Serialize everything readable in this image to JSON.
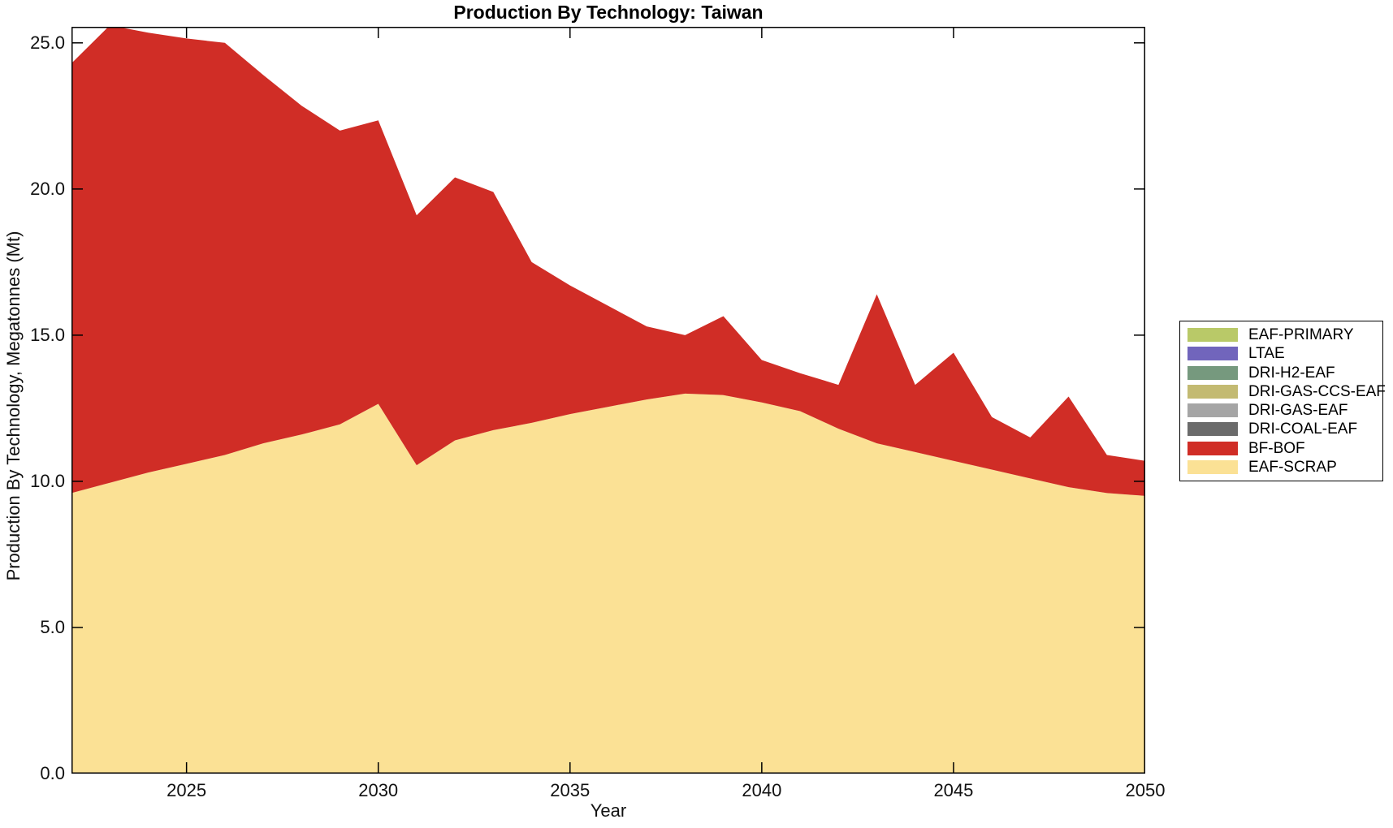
{
  "chart": {
    "title": "Production By Technology: Taiwan",
    "xlabel": "Year",
    "ylabel": "Production By Technology, Megatonnes (Mt)"
  },
  "colors": {
    "axis": "#000000",
    "tick_label": "#111111",
    "background": "#ffffff"
  },
  "chart_data": {
    "type": "area",
    "stacked": true,
    "title": "Production By Technology: Taiwan",
    "xlabel": "Year",
    "ylabel": "Production By Technology, Megatonnes (Mt)",
    "grid": false,
    "legend_position": "right-outside",
    "xlim": [
      2022,
      2050
    ],
    "ylim": [
      0,
      25.55
    ],
    "xticks": [
      2025,
      2030,
      2035,
      2040,
      2045,
      2050
    ],
    "xtick_labels": [
      "2025",
      "2030",
      "2035",
      "2040",
      "2045",
      "2050"
    ],
    "yticks": [
      0,
      5,
      10,
      15,
      20,
      25
    ],
    "ytick_labels": [
      "0.0",
      "5.0",
      "10.0",
      "15.0",
      "20.0",
      "25.0"
    ],
    "x": [
      2022,
      2023,
      2024,
      2025,
      2026,
      2027,
      2028,
      2029,
      2030,
      2031,
      2032,
      2033,
      2034,
      2035,
      2036,
      2037,
      2038,
      2039,
      2040,
      2041,
      2042,
      2043,
      2044,
      2045,
      2046,
      2047,
      2048,
      2049,
      2050
    ],
    "stack_order_bottom_to_top": [
      "EAF-SCRAP",
      "BF-BOF",
      "DRI-COAL-EAF",
      "DRI-GAS-EAF",
      "DRI-GAS-CCS-EAF",
      "DRI-H2-EAF",
      "LTAE",
      "EAF-PRIMARY"
    ],
    "series": [
      {
        "name": "EAF-SCRAP",
        "color": "#fbe195",
        "values": [
          9.6,
          9.95,
          10.3,
          10.6,
          10.9,
          11.3,
          11.6,
          11.95,
          12.65,
          10.55,
          11.4,
          11.75,
          12.0,
          12.3,
          12.55,
          12.8,
          13.0,
          12.95,
          12.7,
          12.4,
          11.8,
          11.3,
          11.0,
          10.7,
          10.4,
          10.1,
          9.8,
          9.6,
          9.5
        ]
      },
      {
        "name": "BF-BOF",
        "color": "#d02d26",
        "values": [
          14.7,
          15.65,
          15.05,
          14.55,
          14.1,
          12.6,
          11.25,
          10.05,
          9.7,
          8.55,
          9.0,
          8.15,
          5.5,
          4.4,
          3.45,
          2.5,
          2.0,
          2.7,
          1.45,
          1.3,
          1.5,
          5.1,
          2.3,
          3.7,
          1.8,
          1.4,
          3.1,
          1.3,
          1.2
        ]
      },
      {
        "name": "DRI-COAL-EAF",
        "color": "#6b6b6b",
        "values": [
          0,
          0,
          0,
          0,
          0,
          0,
          0,
          0,
          0,
          0,
          0,
          0,
          0,
          0,
          0,
          0,
          0,
          0,
          0,
          0,
          0,
          0,
          0,
          0,
          0,
          0,
          0,
          0,
          0
        ]
      },
      {
        "name": "DRI-GAS-EAF",
        "color": "#a5a5a5",
        "values": [
          0,
          0,
          0,
          0,
          0,
          0,
          0,
          0,
          0,
          0,
          0,
          0,
          0,
          0,
          0,
          0,
          0,
          0,
          0,
          0,
          0,
          0,
          0,
          0,
          0,
          0,
          0,
          0,
          0
        ]
      },
      {
        "name": "DRI-GAS-CCS-EAF",
        "color": "#c3ba72",
        "values": [
          0,
          0,
          0,
          0,
          0,
          0,
          0,
          0,
          0,
          0,
          0,
          0,
          0,
          0,
          0,
          0,
          0,
          0,
          0,
          0,
          0,
          0,
          0,
          0,
          0,
          0,
          0,
          0,
          0
        ]
      },
      {
        "name": "DRI-H2-EAF",
        "color": "#76997e",
        "values": [
          0,
          0,
          0,
          0,
          0,
          0,
          0,
          0,
          0,
          0,
          0,
          0,
          0,
          0,
          0,
          0,
          0,
          0,
          0,
          0,
          0,
          0,
          0,
          0,
          0,
          0,
          0,
          0,
          0
        ]
      },
      {
        "name": "LTAE",
        "color": "#7165bc",
        "values": [
          0,
          0,
          0,
          0,
          0,
          0,
          0,
          0,
          0,
          0,
          0,
          0,
          0,
          0,
          0,
          0,
          0,
          0,
          0,
          0,
          0,
          0,
          0,
          0,
          0,
          0,
          0,
          0,
          0
        ]
      },
      {
        "name": "EAF-PRIMARY",
        "color": "#b9c968",
        "values": [
          0,
          0,
          0,
          0,
          0,
          0,
          0,
          0,
          0,
          0,
          0,
          0,
          0,
          0,
          0,
          0,
          0,
          0,
          0,
          0,
          0,
          0,
          0,
          0,
          0,
          0,
          0,
          0,
          0
        ]
      }
    ],
    "legend_entries_top_to_bottom": [
      "EAF-PRIMARY",
      "LTAE",
      "DRI-H2-EAF",
      "DRI-GAS-CCS-EAF",
      "DRI-GAS-EAF",
      "DRI-COAL-EAF",
      "BF-BOF",
      "EAF-SCRAP"
    ]
  }
}
